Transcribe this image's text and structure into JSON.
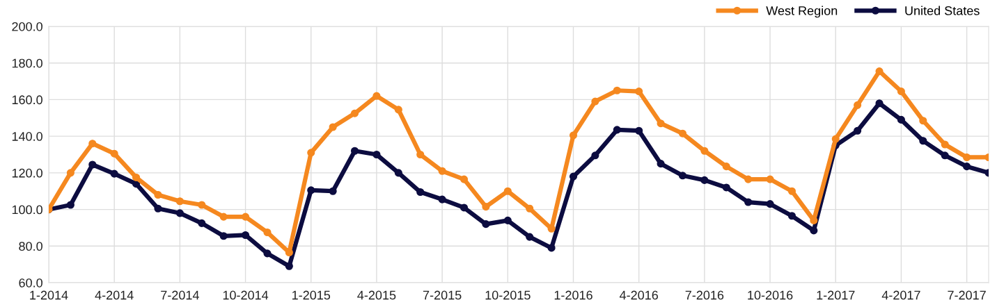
{
  "chart_data": {
    "type": "line",
    "categories": [
      "1-2014",
      null,
      null,
      "4-2014",
      null,
      null,
      "7-2014",
      null,
      null,
      "10-2014",
      null,
      null,
      "1-2015",
      null,
      null,
      "4-2015",
      null,
      null,
      "7-2015",
      null,
      null,
      "10-2015",
      null,
      null,
      "1-2016",
      null,
      null,
      "4-2016",
      null,
      null,
      "7-2016",
      null,
      null,
      "10-2016",
      null,
      null,
      "1-2017",
      null,
      null,
      "4-2017",
      null,
      null,
      "7-2017",
      null
    ],
    "series": [
      {
        "name": "West Region",
        "color": "#f5881f",
        "values": [
          100,
          120,
          136,
          130.5,
          117.5,
          108,
          104.5,
          102.5,
          96,
          96,
          87.5,
          76.5,
          131,
          145,
          152.5,
          162,
          154.5,
          130,
          121,
          116.5,
          101.5,
          110,
          100.5,
          89.5,
          140.5,
          159,
          165,
          164.5,
          147,
          141.5,
          132,
          123.5,
          116.5,
          116.5,
          110,
          94,
          138.5,
          157,
          175.5,
          164.5,
          148.5,
          135.5,
          128.5,
          128.5
        ]
      },
      {
        "name": "United States",
        "color": "#0c0c40",
        "values": [
          100,
          102.5,
          124.5,
          119.5,
          114,
          100.5,
          98,
          92.5,
          85.5,
          86,
          76,
          69,
          110.5,
          110,
          132,
          130,
          120,
          109.5,
          105.5,
          101,
          92,
          94,
          85,
          79,
          118,
          129.5,
          143.5,
          143,
          125,
          118.5,
          116,
          112,
          104,
          103,
          96.5,
          88.5,
          135,
          143,
          158,
          149,
          137.5,
          129.5,
          123.5,
          120
        ]
      }
    ],
    "ylim": [
      60,
      200
    ],
    "yticks": [
      {
        "value": 60,
        "label": "60.0"
      },
      {
        "value": 80,
        "label": "80.0"
      },
      {
        "value": 100,
        "label": "100.0"
      },
      {
        "value": 120,
        "label": "120.0"
      },
      {
        "value": 140,
        "label": "140.0"
      },
      {
        "value": 160,
        "label": "160.0"
      },
      {
        "value": 180,
        "label": "180.0"
      },
      {
        "value": 200,
        "label": "200.0"
      }
    ],
    "grid": true,
    "legend": "top right",
    "marker": "circle",
    "line_style": "solid"
  }
}
